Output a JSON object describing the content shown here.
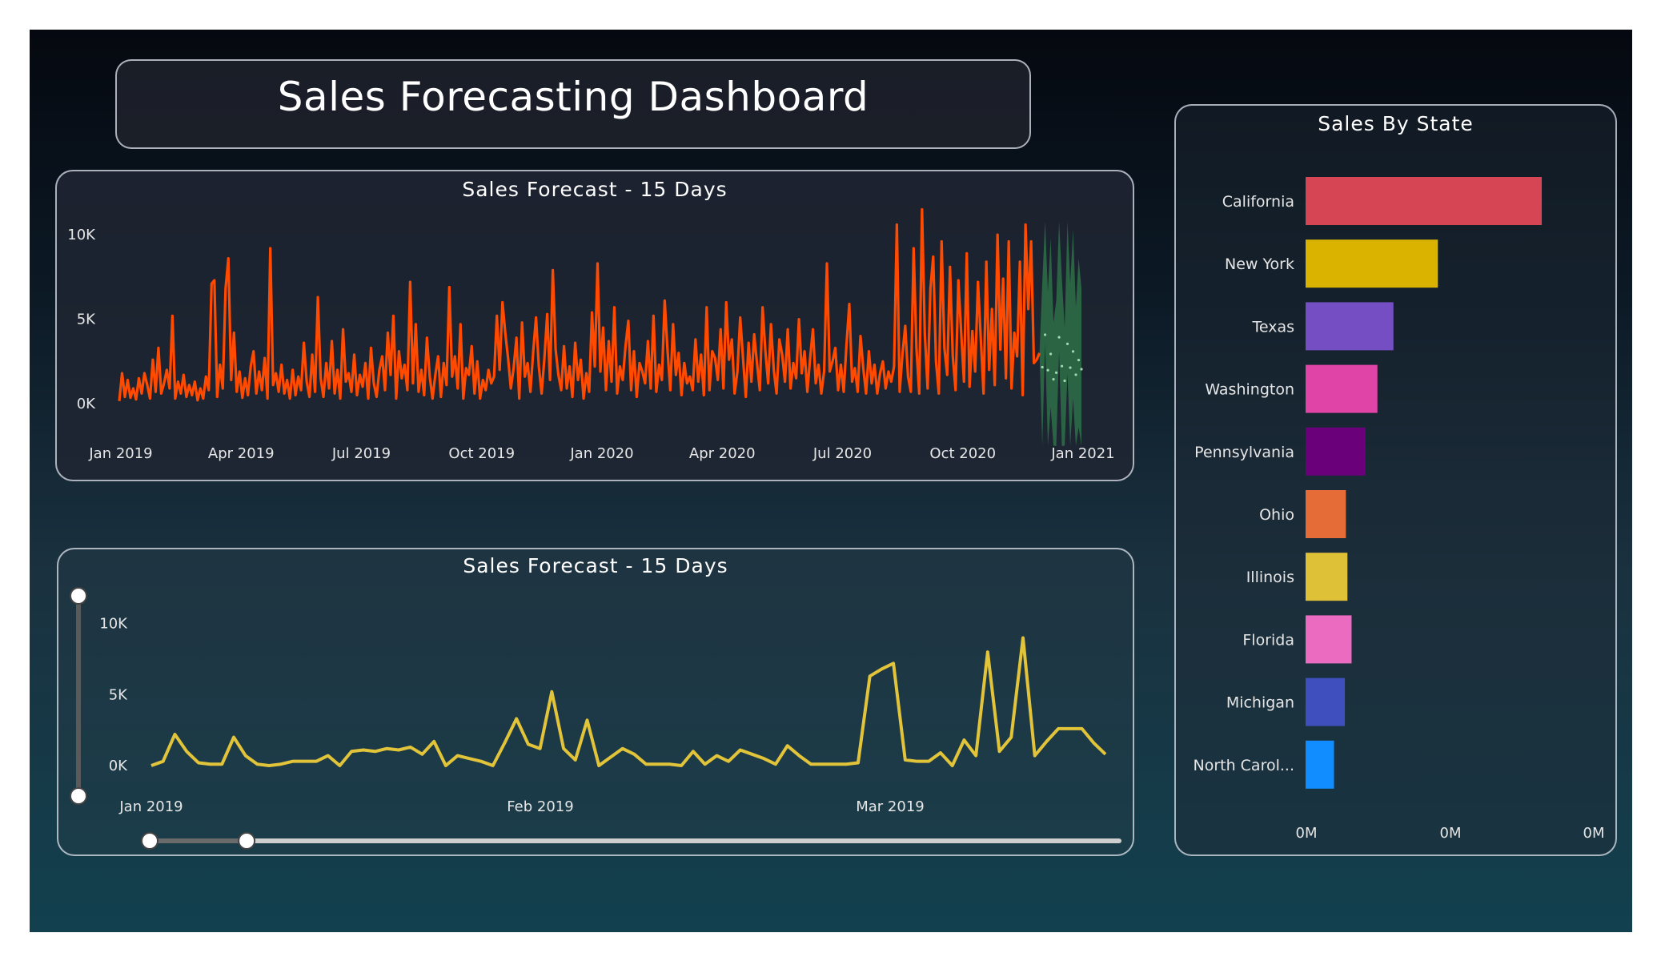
{
  "dashboard": {
    "title": "Sales Forecasting Dashboard"
  },
  "forecast_top": {
    "title": "Sales Forecast - 15 Days"
  },
  "forecast_bottom": {
    "title": "Sales Forecast - 15 Days",
    "date_range_slider": {
      "start": 0.0,
      "end": 0.1
    },
    "y_zoom_slider": {
      "start": 0.0,
      "end": 1.0
    }
  },
  "sales_by_state": {
    "title": "Sales By State"
  },
  "colors": {
    "forecast_line": "#ff4a00",
    "forecast_band": "#2e6b46",
    "zoom_line": "#e2c43a"
  },
  "chart_data": [
    {
      "type": "line",
      "title": "Sales Forecast - 15 Days",
      "x_ticks": [
        "Jan 2019",
        "Apr 2019",
        "Jul 2019",
        "Oct 2019",
        "Jan 2020",
        "Apr 2020",
        "Jul 2020",
        "Oct 2020",
        "Jan 2021"
      ],
      "y_ticks": [
        "0K",
        "5K",
        "10K"
      ],
      "ylim": [
        0,
        11000
      ],
      "series": [
        {
          "values": [
            150,
            1800,
            400,
            1400,
            350,
            900,
            250,
            1500,
            600,
            1800,
            1100,
            300,
            2600,
            700,
            3300,
            600,
            1200,
            2000,
            900,
            5200,
            300,
            1300,
            600,
            1700,
            400,
            1100,
            500,
            1300,
            200,
            900,
            300,
            1600,
            800,
            7100,
            7300,
            400,
            2300,
            900,
            6800,
            8600,
            1400,
            4200,
            700,
            1900,
            350,
            1500,
            500,
            2200,
            3100,
            600,
            1900,
            800,
            2700,
            300,
            9200,
            1100,
            1800,
            700,
            2300,
            600,
            1400,
            300,
            2000,
            500,
            1600,
            800,
            3600,
            1300,
            400,
            2900,
            700,
            6300,
            1500,
            400,
            2400,
            900,
            3700,
            600,
            2000,
            300,
            4400,
            1300,
            1800,
            700,
            2900,
            500,
            1700,
            1000,
            2400,
            300,
            3300,
            1200,
            400,
            2000,
            2800,
            800,
            4200,
            1700,
            5200,
            300,
            3100,
            1500,
            2300,
            800,
            7200,
            1200,
            4700,
            700,
            2000,
            500,
            3900,
            1600,
            300,
            1700,
            2800,
            400,
            2400,
            1100,
            6900,
            1600,
            2800,
            900,
            4700,
            300,
            2100,
            1700,
            3400,
            600,
            2500,
            300,
            1400,
            800,
            2000,
            1200,
            1600,
            5200,
            2000,
            6000,
            4200,
            2700,
            900,
            2100,
            3900,
            300,
            4800,
            1600,
            2400,
            700,
            3100,
            5100,
            2200,
            600,
            2700,
            5300,
            1400,
            7900,
            3200,
            1700,
            800,
            3400,
            900,
            2200,
            400,
            3600,
            1400,
            2600,
            300,
            1800,
            700,
            5400,
            2200,
            8300,
            1900,
            4500,
            800,
            3700,
            1300,
            5700,
            600,
            2200,
            1400,
            3400,
            4900,
            800,
            3100,
            400,
            2400,
            1900,
            1200,
            3700,
            900,
            5200,
            700,
            2300,
            1400,
            6100,
            3200,
            800,
            4700,
            1700,
            3000,
            500,
            2400,
            1200,
            1600,
            800,
            3800,
            1300,
            2900,
            500,
            5700,
            800,
            3100,
            2700,
            1400,
            4400,
            900,
            6000,
            2600,
            3800,
            600,
            1900,
            5100,
            2700,
            400,
            3600,
            1300,
            4100,
            2400,
            800,
            5700,
            3100,
            1200,
            4700,
            2000,
            600,
            3800,
            2900,
            1300,
            4400,
            900,
            2400,
            1500,
            5000,
            1800,
            3100,
            700,
            2700,
            4400,
            1200,
            2300,
            600,
            1900,
            8300,
            1900,
            2500,
            3300,
            800,
            2300,
            700,
            3500,
            5900,
            1300,
            2100,
            700,
            4000,
            2100,
            600,
            3100,
            1200,
            2300,
            600,
            1800,
            2500,
            900,
            1900,
            1300,
            2200,
            10600,
            700,
            2900,
            4600,
            1600,
            700,
            9200,
            3300,
            600,
            11500,
            4100,
            900,
            6800,
            8700,
            2500,
            600,
            9600,
            3300,
            1700,
            8100,
            2800,
            800,
            7300,
            4200,
            1300,
            8900,
            1000,
            4300,
            1900,
            7200,
            3900,
            600,
            8400,
            2000,
            5600,
            1100,
            10000,
            3200,
            7400,
            1500,
            9600,
            900,
            4200,
            2800,
            8400,
            500,
            10600,
            5600,
            9600,
            2400,
            2600,
            3000
          ],
          "forecast": [
            3200,
            9600,
            2600,
            5800,
            800,
            2100,
            9100,
            3400,
            500,
            7800,
            3100,
            6300,
            1700,
            4600,
            2800
          ]
        }
      ]
    },
    {
      "type": "line",
      "title": "Sales Forecast - 15 Days",
      "x_ticks": [
        "Jan 2019",
        "Feb 2019",
        "Mar 2019"
      ],
      "y_ticks": [
        "0K",
        "5K",
        "10K"
      ],
      "ylim": [
        0,
        11000
      ],
      "series": [
        {
          "values": [
            0,
            300,
            2200,
            1000,
            200,
            100,
            100,
            2000,
            700,
            100,
            0,
            100,
            300,
            300,
            300,
            700,
            0,
            1000,
            1100,
            1000,
            1200,
            1100,
            1300,
            800,
            1700,
            0,
            700,
            500,
            300,
            0,
            1600,
            3300,
            1500,
            1200,
            5200,
            1200,
            400,
            3200,
            0,
            600,
            1200,
            800,
            100,
            100,
            100,
            0,
            1000,
            100,
            700,
            300,
            1100,
            800,
            500,
            100,
            1400,
            700,
            100,
            100,
            100,
            100,
            200,
            6300,
            6800,
            7200,
            400,
            300,
            300,
            900,
            0,
            1800,
            700,
            8000,
            1000,
            2000,
            9000,
            700,
            1700,
            2600,
            2600,
            2600,
            1600,
            800
          ]
        }
      ]
    },
    {
      "type": "bar",
      "orientation": "horizontal",
      "title": "Sales By State",
      "categories": [
        "California",
        "New York",
        "Texas",
        "Washington",
        "Pennsylvania",
        "Ohio",
        "Illinois",
        "Florida",
        "Michigan",
        "North Carol..."
      ],
      "values": [
        0.457,
        0.256,
        0.17,
        0.139,
        0.116,
        0.078,
        0.081,
        0.089,
        0.076,
        0.055
      ],
      "colors": [
        "#d64553",
        "#dab300",
        "#744ec2",
        "#e044a7",
        "#6b007b",
        "#e66c37",
        "#dec137",
        "#ea6bbf",
        "#3f4fbd",
        "#118dff"
      ],
      "x_ticks": [
        "0M",
        "0M",
        "0M"
      ],
      "xlim": [
        0,
        0.57
      ]
    }
  ]
}
